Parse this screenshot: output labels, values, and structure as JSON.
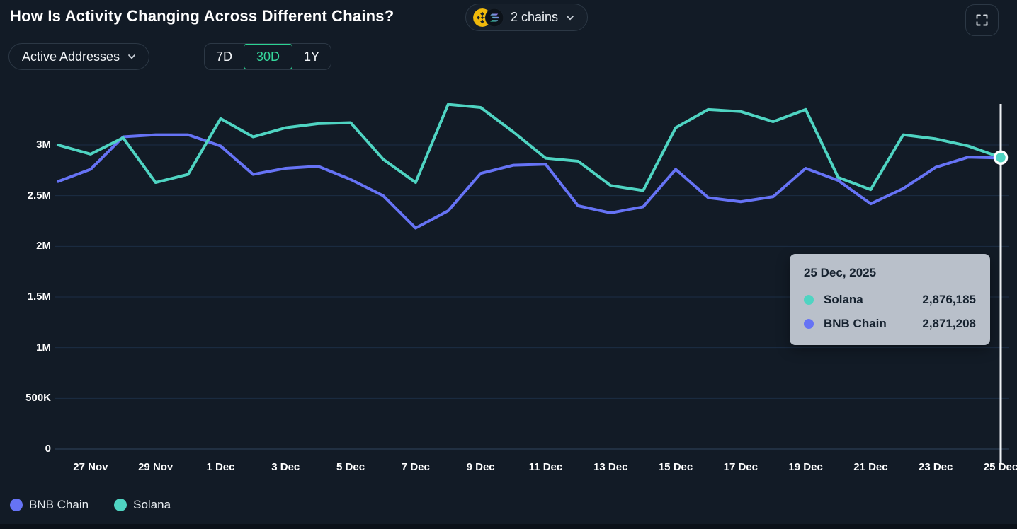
{
  "header": {
    "title": "How Is Activity Changing Across Different Chains?",
    "chains_pill": {
      "label": "2 chains",
      "icons": [
        "bnb-coin-icon",
        "solana-coin-icon"
      ]
    }
  },
  "controls": {
    "metric_dropdown": {
      "selected": "Active Addresses"
    },
    "range_tabs": [
      {
        "label": "7D",
        "active": false
      },
      {
        "label": "30D",
        "active": true
      },
      {
        "label": "1Y",
        "active": false
      }
    ],
    "active_color": "#35d89c"
  },
  "chart_data": {
    "type": "line",
    "x": [
      "26 Nov",
      "27 Nov",
      "28 Nov",
      "29 Nov",
      "30 Nov",
      "1 Dec",
      "2 Dec",
      "3 Dec",
      "4 Dec",
      "5 Dec",
      "6 Dec",
      "7 Dec",
      "8 Dec",
      "9 Dec",
      "10 Dec",
      "11 Dec",
      "12 Dec",
      "13 Dec",
      "14 Dec",
      "15 Dec",
      "16 Dec",
      "17 Dec",
      "18 Dec",
      "19 Dec",
      "20 Dec",
      "21 Dec",
      "22 Dec",
      "23 Dec",
      "24 Dec",
      "25 Dec"
    ],
    "series": [
      {
        "name": "BNB Chain",
        "color": "#6673f5",
        "values": [
          2640000,
          2760000,
          3080000,
          3100000,
          3100000,
          2990000,
          2710000,
          2770000,
          2790000,
          2660000,
          2500000,
          2180000,
          2350000,
          2720000,
          2800000,
          2810000,
          2400000,
          2330000,
          2390000,
          2760000,
          2480000,
          2440000,
          2490000,
          2770000,
          2650000,
          2420000,
          2570000,
          2780000,
          2880000,
          2871208
        ]
      },
      {
        "name": "Solana",
        "color": "#4fd4c2",
        "values": [
          3000000,
          2910000,
          3070000,
          2630000,
          2710000,
          3260000,
          3080000,
          3170000,
          3210000,
          3220000,
          2860000,
          2630000,
          3400000,
          3370000,
          3130000,
          2870000,
          2840000,
          2600000,
          2550000,
          3170000,
          3350000,
          3330000,
          3230000,
          3350000,
          2680000,
          2560000,
          3100000,
          3060000,
          2990000,
          2876185
        ]
      }
    ],
    "y_ticks": [
      {
        "value": 0,
        "label": "0"
      },
      {
        "value": 500000,
        "label": "500K"
      },
      {
        "value": 1000000,
        "label": "1M"
      },
      {
        "value": 1500000,
        "label": "1.5M"
      },
      {
        "value": 2000000,
        "label": "2M"
      },
      {
        "value": 2500000,
        "label": "2.5M"
      },
      {
        "value": 3000000,
        "label": "3M"
      }
    ],
    "x_tick_indices": [
      1,
      3,
      5,
      7,
      9,
      11,
      13,
      15,
      17,
      19,
      21,
      23,
      25,
      27,
      29
    ],
    "ylim": [
      0,
      3500000
    ],
    "grid": "horizontal",
    "legend_position": "bottom-left",
    "crosshair": {
      "index": 29,
      "line_color": "#eef2f5",
      "dot_series": "Solana",
      "dot_color": "#4fd4c2",
      "dot_ring": "#ffffff"
    }
  },
  "tooltip": {
    "date": "25 Dec, 2025",
    "rows": [
      {
        "name": "Solana",
        "value": "2,876,185",
        "color": "#4fd4c2"
      },
      {
        "name": "BNB Chain",
        "value": "2,871,208",
        "color": "#6673f5"
      }
    ]
  },
  "legend": [
    {
      "label": "BNB Chain",
      "color": "#6673f5"
    },
    {
      "label": "Solana",
      "color": "#4fd4c2"
    }
  ]
}
